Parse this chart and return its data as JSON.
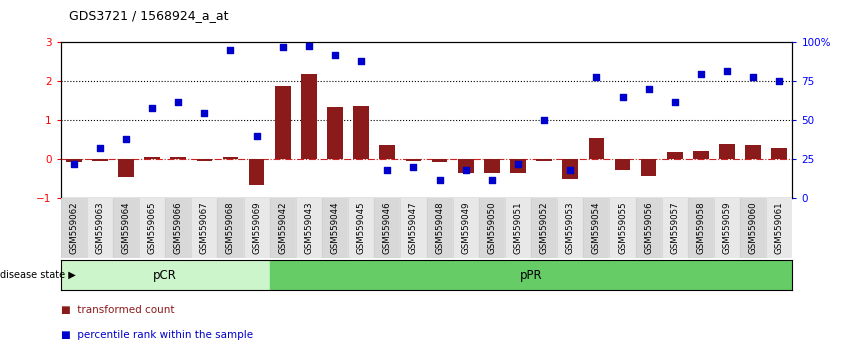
{
  "title": "GDS3721 / 1568924_a_at",
  "samples": [
    "GSM559062",
    "GSM559063",
    "GSM559064",
    "GSM559065",
    "GSM559066",
    "GSM559067",
    "GSM559068",
    "GSM559069",
    "GSM559042",
    "GSM559043",
    "GSM559044",
    "GSM559045",
    "GSM559046",
    "GSM559047",
    "GSM559048",
    "GSM559049",
    "GSM559050",
    "GSM559051",
    "GSM559052",
    "GSM559053",
    "GSM559054",
    "GSM559055",
    "GSM559056",
    "GSM559057",
    "GSM559058",
    "GSM559059",
    "GSM559060",
    "GSM559061"
  ],
  "transformed_count": [
    -0.08,
    -0.05,
    -0.45,
    0.05,
    0.05,
    -0.05,
    0.05,
    -0.65,
    1.88,
    2.18,
    1.35,
    1.38,
    0.38,
    -0.05,
    -0.08,
    -0.35,
    -0.35,
    -0.35,
    -0.05,
    -0.5,
    0.55,
    -0.28,
    -0.42,
    0.18,
    0.22,
    0.4,
    0.38,
    0.28
  ],
  "percentile_rank": [
    22,
    32,
    38,
    58,
    62,
    55,
    95,
    40,
    97,
    98,
    92,
    88,
    18,
    20,
    12,
    18,
    12,
    22,
    50,
    18,
    78,
    65,
    70,
    62,
    80,
    82,
    78,
    75
  ],
  "pCR_count": 8,
  "pPR_count": 20,
  "ylim_left": [
    -1.0,
    3.0
  ],
  "ylim_right": [
    0,
    100
  ],
  "bar_color": "#8B1A1A",
  "dot_color": "#0000CC",
  "zero_line_color": "#CC2222",
  "bg_color": "#ffffff",
  "pCR_color": "#ccf5cc",
  "pPR_color": "#66cc66",
  "label_transformed": "transformed count",
  "label_percentile": "percentile rank within the sample",
  "left_yticks": [
    -1,
    0,
    1,
    2,
    3
  ],
  "right_yticks": [
    0,
    25,
    50,
    75,
    100
  ]
}
